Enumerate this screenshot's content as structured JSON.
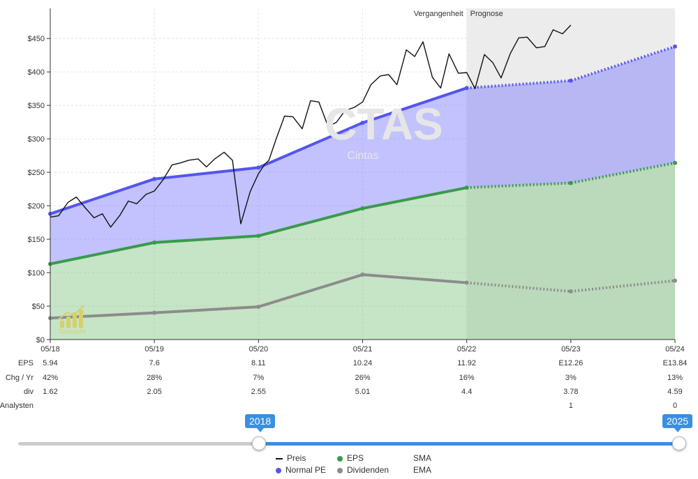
{
  "chart_data": {
    "type": "area",
    "title": "",
    "watermark": {
      "ticker": "CTAS",
      "name": "Cintas",
      "logo_text": "TopGraphs"
    },
    "period_labels": {
      "past": "Vergangenheit",
      "forecast": "Prognose"
    },
    "x_labels": [
      "05/18",
      "05/19",
      "05/20",
      "05/21",
      "05/22",
      "05/23",
      "05/24"
    ],
    "x_years": [
      2018,
      2019,
      2020,
      2021,
      2022,
      2023,
      2024
    ],
    "forecast_start_year": 2022.0,
    "y_ticks": [
      "$0",
      "$50",
      "$100",
      "$150",
      "$200",
      "$250",
      "$300",
      "$350",
      "$400",
      "$450"
    ],
    "ylim": [
      0,
      495
    ],
    "xlim": [
      2018.0,
      2024.0
    ],
    "grid": true,
    "series": [
      {
        "name": "Normal PE",
        "color": "#5555ee",
        "x": [
          2018,
          2019,
          2020,
          2021,
          2022,
          2023,
          2024
        ],
        "values": [
          188,
          240,
          257,
          324,
          376,
          387,
          438
        ]
      },
      {
        "name": "EPS",
        "color": "#3a9a4a",
        "x": [
          2018,
          2019,
          2020,
          2021,
          2022,
          2023,
          2024
        ],
        "values": [
          113,
          145,
          155,
          196,
          227,
          234,
          264
        ]
      },
      {
        "name": "Dividenden",
        "color": "#8c8c8c",
        "x": [
          2018,
          2019,
          2020,
          2021,
          2022,
          2023,
          2024
        ],
        "values": [
          32,
          40,
          49,
          97,
          85,
          72,
          88
        ]
      },
      {
        "name": "Preis",
        "color": "#111111",
        "x": [
          2018.0,
          2018.08,
          2018.17,
          2018.25,
          2018.33,
          2018.42,
          2018.5,
          2018.58,
          2018.67,
          2018.75,
          2018.83,
          2018.92,
          2019.0,
          2019.08,
          2019.17,
          2019.25,
          2019.33,
          2019.42,
          2019.5,
          2019.58,
          2019.67,
          2019.75,
          2019.83,
          2019.92,
          2020.0,
          2020.06,
          2020.1,
          2020.17,
          2020.25,
          2020.33,
          2020.42,
          2020.5,
          2020.58,
          2020.67,
          2020.75,
          2020.83,
          2020.92,
          2021.0,
          2021.08,
          2021.17,
          2021.25,
          2021.33,
          2021.42,
          2021.5,
          2021.58,
          2021.67,
          2021.75,
          2021.83,
          2021.92,
          2022.0,
          2022.08,
          2022.17,
          2022.25,
          2022.33,
          2022.42,
          2022.5,
          2022.58,
          2022.67,
          2022.75,
          2022.83,
          2022.92,
          2023.0
        ],
        "values": [
          183,
          185,
          205,
          213,
          198,
          182,
          188,
          168,
          186,
          207,
          203,
          217,
          222,
          238,
          261,
          264,
          268,
          270,
          258,
          270,
          280,
          268,
          173,
          221,
          248,
          262,
          268,
          300,
          334,
          333,
          315,
          357,
          355,
          318,
          325,
          342,
          347,
          355,
          381,
          394,
          396,
          381,
          433,
          423,
          445,
          392,
          376,
          427,
          398,
          399,
          375,
          426,
          414,
          391,
          428,
          451,
          452,
          436,
          438,
          463,
          457,
          470
        ]
      }
    ],
    "table": {
      "rows": [
        {
          "label": "EPS",
          "values": [
            "5.94",
            "7.6",
            "8.11",
            "10.24",
            "11.92",
            "E12.26",
            "E13.84"
          ]
        },
        {
          "label": "Chg / Yr",
          "values": [
            "42%",
            "28%",
            "7%",
            "26%",
            "16%",
            "3%",
            "13%"
          ]
        },
        {
          "label": "div",
          "values": [
            "1.62",
            "2.05",
            "2.55",
            "5.01",
            "4.4",
            "3.78",
            "4.59"
          ]
        },
        {
          "label": "Analysten",
          "values": [
            "",
            "",
            "",
            "",
            "",
            "1",
            "0"
          ]
        }
      ]
    }
  },
  "slider": {
    "min_label": "2018",
    "max_label": "2025",
    "range_min": 2018,
    "range_max": 2025,
    "track_start": 2014,
    "track_end": 2025
  },
  "legend": {
    "items": [
      {
        "label": "Preis",
        "marker": "line",
        "color": "#111111"
      },
      {
        "label": "EPS",
        "marker": "dot",
        "color": "#3a9a4a"
      },
      {
        "label": "SMA",
        "marker": "none",
        "color": ""
      },
      {
        "label": "Normal PE",
        "marker": "dot",
        "color": "#5555ee"
      },
      {
        "label": "Dividenden",
        "marker": "dot",
        "color": "#8c8c8c"
      },
      {
        "label": "EMA",
        "marker": "none",
        "color": ""
      }
    ]
  }
}
